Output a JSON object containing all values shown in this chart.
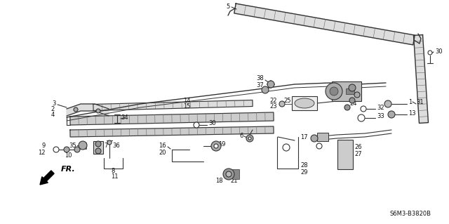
{
  "background_color": "#ffffff",
  "diagram_code": "S6M3-B3820B",
  "line_color": "#333333",
  "hatch_color": "#666666"
}
